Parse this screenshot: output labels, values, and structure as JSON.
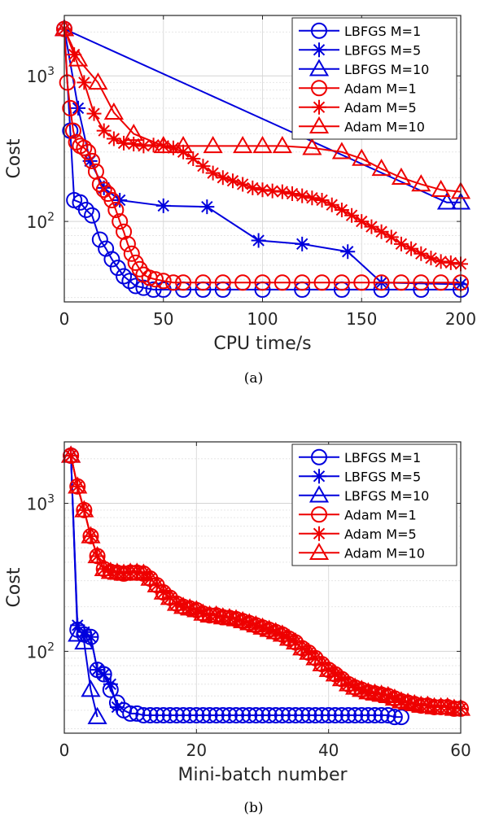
{
  "chart_data": [
    {
      "type": "line",
      "caption": "(a)",
      "xlabel": "CPU time/s",
      "ylabel": "Cost",
      "xscale": "linear",
      "yscale": "log",
      "xlim": [
        0,
        200
      ],
      "ylim": [
        28,
        2600
      ],
      "xticks": [
        0,
        50,
        100,
        150,
        200
      ],
      "xtick_labels": [
        "0",
        "50",
        "100",
        "150",
        "200"
      ],
      "ytick_labels": [
        {
          "value": 100,
          "base": "10",
          "exp": "2"
        },
        {
          "value": 1000,
          "base": "10",
          "exp": "3"
        }
      ],
      "grid": true,
      "legend_position": "top-right",
      "series": [
        {
          "name": "LBFGS M=1",
          "color": "#0000dd",
          "marker": "circle",
          "x": [
            0,
            3,
            5,
            8,
            11,
            14,
            18,
            21,
            24,
            27,
            30,
            33,
            36,
            40,
            45,
            50,
            60,
            70,
            80,
            100,
            120,
            140,
            160,
            180,
            200
          ],
          "y": [
            2100,
            420,
            140,
            135,
            120,
            110,
            75,
            65,
            55,
            48,
            42,
            39,
            36,
            35,
            34,
            34,
            34,
            34,
            34,
            34,
            34,
            34,
            34,
            34,
            34
          ]
        },
        {
          "name": "LBFGS M=5",
          "color": "#0000dd",
          "marker": "star",
          "x": [
            0,
            7,
            13,
            20,
            28,
            50,
            72,
            98,
            120,
            143,
            160,
            200
          ],
          "y": [
            2100,
            600,
            260,
            170,
            140,
            128,
            126,
            74,
            70,
            62,
            38,
            37
          ]
        },
        {
          "name": "LBFGS M=10",
          "color": "#0000dd",
          "marker": "triangle",
          "x": [
            0,
            193,
            200
          ],
          "y": [
            2100,
            135,
            135
          ]
        },
        {
          "name": "Adam M=1",
          "color": "#ee0000",
          "marker": "circle",
          "x": [
            0,
            1.5,
            3,
            4.5,
            6,
            8,
            10,
            12,
            14,
            16,
            18,
            20,
            22,
            24,
            26,
            28,
            30,
            32,
            34,
            36,
            38,
            40,
            43,
            46,
            50,
            55,
            60,
            70,
            80,
            90,
            100,
            110,
            120,
            130,
            140,
            150,
            160,
            170,
            180,
            190,
            200
          ],
          "y": [
            2100,
            900,
            600,
            420,
            350,
            330,
            320,
            300,
            260,
            220,
            180,
            165,
            155,
            140,
            120,
            100,
            85,
            70,
            60,
            52,
            47,
            43,
            41,
            40,
            39,
            38,
            38,
            38,
            38,
            38,
            38,
            38,
            38,
            38,
            38,
            38,
            38,
            38,
            38,
            38,
            38
          ]
        },
        {
          "name": "Adam M=5",
          "color": "#ee0000",
          "marker": "star",
          "x": [
            0,
            5,
            10,
            15,
            20,
            25,
            30,
            35,
            40,
            45,
            50,
            55,
            60,
            65,
            70,
            75,
            80,
            85,
            90,
            95,
            100,
            105,
            110,
            115,
            120,
            125,
            130,
            135,
            140,
            145,
            150,
            155,
            160,
            165,
            170,
            175,
            180,
            185,
            190,
            195,
            200
          ],
          "y": [
            2100,
            1400,
            900,
            550,
            420,
            370,
            345,
            340,
            330,
            335,
            330,
            320,
            300,
            270,
            240,
            215,
            200,
            190,
            180,
            170,
            165,
            162,
            160,
            155,
            150,
            145,
            140,
            130,
            120,
            110,
            100,
            92,
            85,
            78,
            70,
            65,
            60,
            56,
            53,
            52,
            51
          ]
        },
        {
          "name": "Adam M=10",
          "color": "#ee0000",
          "marker": "triangle",
          "x": [
            0,
            7,
            17,
            25,
            35,
            50,
            60,
            75,
            90,
            100,
            110,
            125,
            140,
            150,
            160,
            170,
            180,
            190,
            200
          ],
          "y": [
            2100,
            1300,
            900,
            560,
            400,
            330,
            330,
            330,
            330,
            330,
            330,
            320,
            300,
            270,
            230,
            200,
            180,
            165,
            160
          ]
        }
      ]
    },
    {
      "type": "line",
      "caption": "(b)",
      "xlabel": "Mini-batch number",
      "ylabel": "Cost",
      "xscale": "linear",
      "yscale": "log",
      "xlim": [
        0,
        60
      ],
      "ylim": [
        28,
        2600
      ],
      "xticks": [
        0,
        20,
        40,
        60
      ],
      "xtick_labels": [
        "0",
        "20",
        "40",
        "60"
      ],
      "ytick_labels": [
        {
          "value": 100,
          "base": "10",
          "exp": "2"
        },
        {
          "value": 1000,
          "base": "10",
          "exp": "3"
        }
      ],
      "grid": true,
      "legend_position": "top-right",
      "series": [
        {
          "name": "LBFGS M=1",
          "color": "#0000dd",
          "marker": "circle",
          "x": [
            1,
            2,
            3,
            4,
            5,
            6,
            7,
            8,
            9,
            10,
            11,
            12,
            13,
            14,
            15,
            16,
            17,
            18,
            19,
            20,
            21,
            22,
            23,
            24,
            25,
            26,
            27,
            28,
            29,
            30,
            31,
            32,
            33,
            34,
            35,
            36,
            37,
            38,
            39,
            40,
            41,
            42,
            43,
            44,
            45,
            46,
            47,
            48,
            49,
            50,
            51
          ],
          "y": [
            2100,
            140,
            130,
            125,
            75,
            70,
            55,
            45,
            40,
            38,
            38,
            37,
            37,
            37,
            37,
            37,
            37,
            37,
            37,
            37,
            37,
            37,
            37,
            37,
            37,
            37,
            37,
            37,
            37,
            37,
            37,
            37,
            37,
            37,
            37,
            37,
            37,
            37,
            37,
            37,
            37,
            37,
            37,
            37,
            37,
            37,
            37,
            37,
            37,
            36,
            36
          ]
        },
        {
          "name": "LBFGS M=5",
          "color": "#0000dd",
          "marker": "star",
          "x": [
            1,
            2,
            3,
            4,
            5,
            6,
            7,
            8
          ],
          "y": [
            2100,
            150,
            135,
            125,
            75,
            70,
            60,
            42
          ]
        },
        {
          "name": "LBFGS M=10",
          "color": "#0000dd",
          "marker": "triangle",
          "x": [
            1,
            2,
            3,
            4,
            5
          ],
          "y": [
            2100,
            130,
            115,
            55,
            36
          ]
        },
        {
          "name": "Adam M=1",
          "color": "#ee0000",
          "marker": "circle",
          "x": [
            1,
            2,
            3,
            4,
            5,
            6,
            7,
            8,
            9,
            10,
            11,
            12,
            13,
            14,
            15,
            16,
            17,
            18,
            19,
            20,
            21,
            22,
            23,
            24,
            25,
            26,
            27,
            28,
            29,
            30,
            31,
            32,
            33,
            34,
            35,
            36,
            37,
            38,
            39,
            40,
            41,
            42,
            43,
            44,
            45,
            46,
            47,
            48,
            49,
            50,
            51,
            52,
            53,
            54,
            55,
            56,
            57,
            58,
            59,
            60
          ],
          "y": [
            2100,
            1300,
            900,
            600,
            440,
            360,
            345,
            340,
            335,
            340,
            340,
            335,
            310,
            280,
            250,
            230,
            210,
            200,
            195,
            190,
            180,
            175,
            175,
            170,
            168,
            165,
            160,
            155,
            150,
            145,
            140,
            135,
            130,
            122,
            115,
            105,
            98,
            90,
            82,
            75,
            70,
            65,
            60,
            57,
            55,
            53,
            52,
            51,
            50,
            48,
            46,
            45,
            44,
            43,
            43,
            42,
            42,
            42,
            41,
            41
          ]
        },
        {
          "name": "Adam M=5",
          "color": "#ee0000",
          "marker": "star",
          "x": [
            1,
            2,
            3,
            4,
            5,
            6,
            7,
            8,
            9,
            10,
            11,
            12,
            13,
            14,
            15,
            16,
            17,
            18,
            19,
            20,
            21,
            22,
            23,
            24,
            25,
            26,
            27,
            28,
            29,
            30,
            31,
            32,
            33,
            34,
            35,
            36,
            37,
            38,
            39,
            40,
            41,
            42,
            43,
            44,
            45,
            46,
            47,
            48,
            49,
            50,
            51,
            52,
            53,
            54,
            55,
            56,
            57,
            58,
            59,
            60
          ],
          "y": [
            2100,
            1300,
            900,
            600,
            440,
            360,
            345,
            340,
            335,
            340,
            340,
            335,
            310,
            280,
            250,
            230,
            210,
            200,
            195,
            190,
            180,
            175,
            175,
            170,
            168,
            165,
            160,
            155,
            150,
            145,
            140,
            135,
            130,
            122,
            115,
            105,
            98,
            90,
            82,
            75,
            70,
            65,
            60,
            57,
            55,
            53,
            52,
            51,
            50,
            48,
            46,
            45,
            44,
            43,
            43,
            42,
            42,
            42,
            41,
            41
          ]
        },
        {
          "name": "Adam M=10",
          "color": "#ee0000",
          "marker": "triangle",
          "x": [
            1,
            2,
            3,
            4,
            5,
            6,
            7,
            8,
            9,
            10,
            11,
            12,
            13,
            14,
            15,
            16,
            17,
            18,
            19,
            20,
            21,
            22,
            23,
            24,
            25,
            26,
            27,
            28,
            29,
            30,
            31,
            32,
            33,
            34,
            35,
            36,
            37,
            38,
            39,
            40,
            41,
            42,
            43,
            44,
            45,
            46,
            47,
            48,
            49,
            50,
            51,
            52,
            53,
            54,
            55,
            56,
            57,
            58,
            59,
            60
          ],
          "y": [
            2100,
            1300,
            900,
            600,
            440,
            360,
            345,
            340,
            335,
            340,
            340,
            335,
            310,
            280,
            250,
            230,
            210,
            200,
            195,
            190,
            180,
            175,
            175,
            170,
            168,
            165,
            160,
            155,
            150,
            145,
            140,
            135,
            130,
            122,
            115,
            105,
            98,
            90,
            82,
            75,
            70,
            65,
            60,
            57,
            55,
            53,
            52,
            51,
            50,
            48,
            46,
            45,
            44,
            43,
            43,
            42,
            42,
            42,
            41,
            41
          ]
        }
      ]
    }
  ]
}
